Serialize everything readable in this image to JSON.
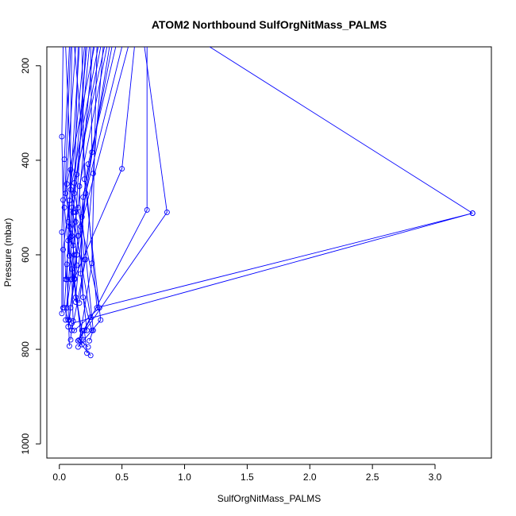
{
  "chart_data": {
    "type": "line",
    "title": "ATOM2 Northbound SulfOrgNitMass_PALMS",
    "xlabel": "SulfOrgNitMass_PALMS",
    "ylabel": "Pressure (mbar)",
    "xlim": [
      -0.1,
      3.45
    ],
    "ylim": [
      1030,
      160
    ],
    "y_reversed": true,
    "grid": false,
    "x_ticks": [
      0.0,
      0.5,
      1.0,
      1.5,
      2.0,
      2.5,
      3.0
    ],
    "x_tick_labels": [
      "0.0",
      "0.5",
      "1.0",
      "1.5",
      "2.0",
      "2.5",
      "3.0"
    ],
    "y_ticks": [
      200,
      400,
      600,
      800,
      1000
    ],
    "y_tick_labels": [
      "200",
      "400",
      "600",
      "800",
      "1000"
    ],
    "colors": {
      "series": "#0000ff",
      "frame": "#000000"
    },
    "series": [
      {
        "values": [
          [
            0.12,
            160
          ],
          [
            0.3,
            712
          ],
          [
            3.3,
            512
          ],
          [
            0.1,
            745
          ],
          [
            0.09,
            780
          ]
        ]
      },
      {
        "values": [
          [
            0.7,
            160
          ],
          [
            0.7,
            505
          ],
          [
            0.2,
            760
          ],
          [
            0.22,
            808
          ]
        ]
      },
      {
        "values": [
          [
            0.68,
            160
          ],
          [
            0.86,
            510
          ],
          [
            0.15,
            782
          ],
          [
            0.25,
            813
          ]
        ]
      },
      {
        "values": [
          [
            0.6,
            160
          ],
          [
            0.5,
            418
          ],
          [
            0.12,
            650
          ],
          [
            0.18,
            790
          ]
        ]
      },
      {
        "values": [
          [
            0.03,
            160
          ],
          [
            0.02,
            350
          ],
          [
            0.03,
            484
          ],
          [
            0.05,
            652
          ]
        ]
      },
      {
        "values": [
          [
            0.08,
            160
          ],
          [
            0.04,
            398
          ],
          [
            0.02,
            552
          ],
          [
            0.02,
            724
          ]
        ]
      },
      {
        "values": [
          [
            0.2,
            160
          ],
          [
            0.08,
            485
          ],
          [
            0.03,
            589
          ],
          [
            0.03,
            712
          ]
        ]
      },
      {
        "values": [
          [
            0.25,
            160
          ],
          [
            0.26,
            383
          ],
          [
            0.14,
            600
          ],
          [
            0.07,
            752
          ]
        ]
      },
      {
        "values": [
          [
            0.35,
            160
          ],
          [
            0.27,
            428
          ],
          [
            0.21,
            610
          ],
          [
            0.1,
            760
          ]
        ]
      },
      {
        "values": [
          [
            0.3,
            160
          ],
          [
            0.26,
            618
          ],
          [
            0.16,
            780
          ],
          [
            0.23,
            795
          ]
        ]
      },
      {
        "values": [
          [
            0.18,
            160
          ],
          [
            0.2,
            440
          ],
          [
            0.33,
            738
          ],
          [
            0.15,
            795
          ]
        ]
      },
      {
        "values": [
          [
            0.15,
            160
          ],
          [
            0.12,
            470
          ],
          [
            0.32,
            712
          ],
          [
            0.12,
            760
          ]
        ]
      },
      {
        "values": [
          [
            0.4,
            160
          ],
          [
            0.18,
            520
          ],
          [
            0.27,
            760
          ],
          [
            0.24,
            782
          ]
        ]
      },
      {
        "values": [
          [
            0.22,
            160
          ],
          [
            0.1,
            500
          ],
          [
            0.25,
            732
          ],
          [
            0.15,
            782
          ]
        ]
      },
      {
        "values": [
          [
            0.1,
            160
          ],
          [
            0.08,
            540
          ],
          [
            0.04,
            712
          ],
          [
            0.07,
            738
          ]
        ]
      },
      {
        "values": [
          [
            0.45,
            160
          ],
          [
            0.23,
            408
          ],
          [
            0.15,
            560
          ],
          [
            0.08,
            738
          ]
        ]
      },
      {
        "values": [
          [
            0.28,
            160
          ],
          [
            0.06,
            450
          ],
          [
            0.09,
            652
          ],
          [
            0.06,
            712
          ]
        ]
      },
      {
        "values": [
          [
            0.05,
            160
          ],
          [
            0.09,
            420
          ],
          [
            0.11,
            580
          ],
          [
            0.13,
            700
          ]
        ]
      },
      {
        "values": [
          [
            0.33,
            160
          ],
          [
            0.14,
            430
          ],
          [
            0.06,
            620
          ],
          [
            0.08,
            793
          ]
        ]
      },
      {
        "values": [
          [
            0.38,
            160
          ],
          [
            0.16,
            455
          ],
          [
            0.19,
            690
          ],
          [
            0.26,
            760
          ]
        ]
      },
      {
        "values": [
          [
            0.13,
            160
          ],
          [
            0.05,
            470
          ],
          [
            0.1,
            560
          ],
          [
            0.05,
            738
          ]
        ]
      },
      {
        "values": [
          [
            0.24,
            160
          ],
          [
            0.11,
            510
          ],
          [
            0.14,
            622
          ],
          [
            0.09,
            712
          ]
        ]
      },
      {
        "values": [
          [
            0.42,
            160
          ],
          [
            0.19,
            478
          ],
          [
            0.17,
            640
          ],
          [
            0.22,
            760
          ]
        ]
      },
      {
        "values": [
          [
            0.16,
            160
          ],
          [
            0.07,
            530
          ],
          [
            0.12,
            600
          ],
          [
            0.1,
            652
          ]
        ]
      },
      {
        "values": [
          [
            0.5,
            160
          ],
          [
            0.21,
            470
          ],
          [
            0.13,
            690
          ],
          [
            0.18,
            760
          ]
        ]
      },
      {
        "values": [
          [
            0.27,
            160
          ],
          [
            0.15,
            500
          ],
          [
            0.09,
            562
          ],
          [
            0.11,
            740
          ]
        ]
      },
      {
        "values": [
          [
            0.36,
            160
          ],
          [
            0.12,
            448
          ],
          [
            0.07,
            570
          ],
          [
            0.06,
            652
          ]
        ]
      },
      {
        "values": [
          [
            0.09,
            160
          ],
          [
            0.04,
            500
          ],
          [
            0.08,
            602
          ],
          [
            0.12,
            652
          ]
        ]
      },
      {
        "values": [
          [
            0.55,
            160
          ],
          [
            0.17,
            540
          ],
          [
            0.2,
            610
          ],
          [
            0.16,
            702
          ]
        ]
      },
      {
        "values": [
          [
            0.21,
            160
          ],
          [
            0.13,
            530
          ],
          [
            0.1,
            630
          ],
          [
            0.19,
            780
          ]
        ]
      },
      {
        "values": [
          [
            0.31,
            160
          ],
          [
            0.09,
            462
          ],
          [
            0.13,
            510
          ],
          [
            0.15,
            560
          ]
        ]
      },
      {
        "values": [
          [
            1.2,
            160
          ],
          [
            3.3,
            512
          ]
        ]
      }
    ]
  }
}
